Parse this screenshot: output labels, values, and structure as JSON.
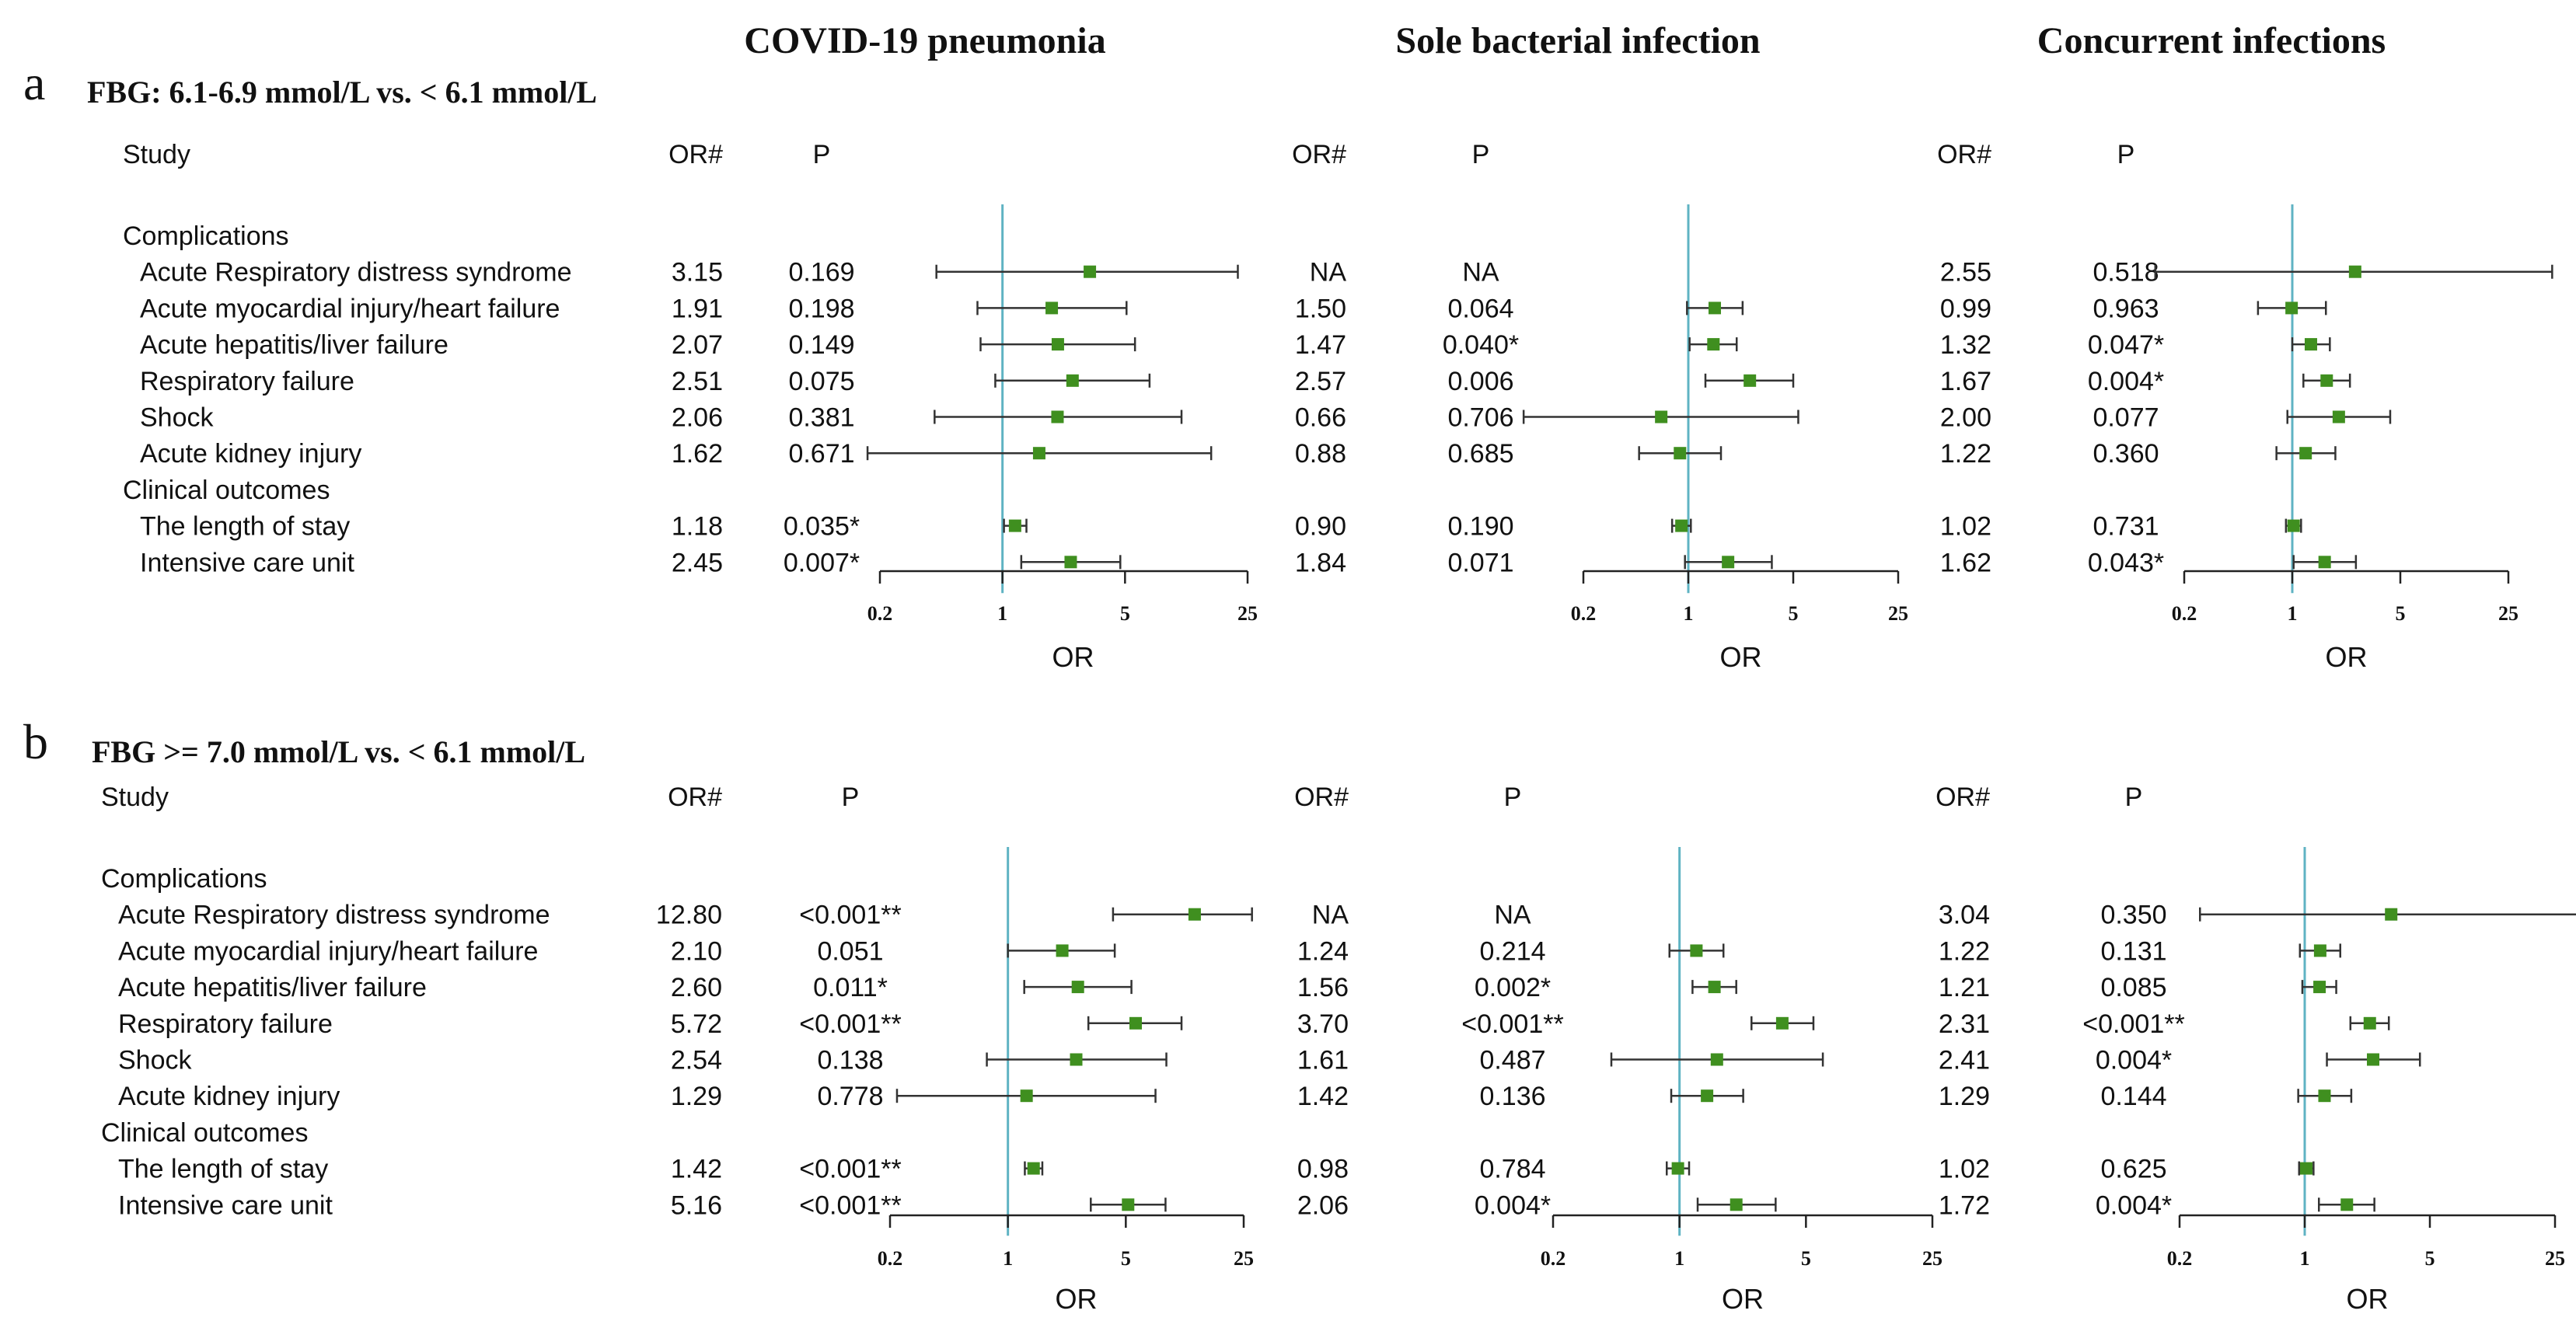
{
  "columns": [
    "COVID-19 pneumonia",
    "Sole bacterial infection",
    "Concurrent infections"
  ],
  "header": {
    "study": "Study",
    "or": "OR#",
    "p": "P"
  },
  "axis": {
    "label": "OR",
    "ticks": [
      "0.2",
      "1",
      "5",
      "25"
    ],
    "tick_values": [
      0.2,
      1,
      5,
      25
    ],
    "range": [
      0.2,
      25
    ],
    "scale": "log"
  },
  "colors": {
    "point": "#3f8f1f",
    "reference_line": "#5fb3c3",
    "text": "#111111",
    "ci_line": "#333333"
  },
  "chart_data": [
    {
      "type": "forest",
      "panel": "a",
      "title": "FBG: 6.1-6.9 mmol/L vs. < 6.1 mmol/L",
      "xlabel": "OR",
      "xlim": [
        0.2,
        25
      ],
      "rows": [
        {
          "kind": "section",
          "label": "Complications"
        },
        {
          "kind": "item",
          "label": "Acute Respiratory distress syndrome",
          "cells": [
            {
              "or": "3.15",
              "p": "0.169",
              "est": 3.15,
              "lo": 0.42,
              "hi": 22.0
            },
            {
              "or": "NA",
              "p": "NA",
              "est": null,
              "lo": null,
              "hi": null
            },
            {
              "or": "2.55",
              "p": "0.518",
              "est": 2.55,
              "lo": 0.13,
              "hi": 48.0
            }
          ]
        },
        {
          "kind": "item",
          "label": "Acute myocardial injury/heart failure",
          "cells": [
            {
              "or": "1.91",
              "p": "0.198",
              "est": 1.91,
              "lo": 0.72,
              "hi": 5.1
            },
            {
              "or": "1.50",
              "p": "0.064",
              "est": 1.5,
              "lo": 0.98,
              "hi": 2.3
            },
            {
              "or": "0.99",
              "p": "0.963",
              "est": 0.99,
              "lo": 0.6,
              "hi": 1.65
            }
          ]
        },
        {
          "kind": "item",
          "label": "Acute hepatitis/liver failure",
          "cells": [
            {
              "or": "2.07",
              "p": "0.149",
              "est": 2.07,
              "lo": 0.75,
              "hi": 5.7
            },
            {
              "or": "1.47",
              "p": "0.040*",
              "est": 1.47,
              "lo": 1.02,
              "hi": 2.1
            },
            {
              "or": "1.32",
              "p": "0.047*",
              "est": 1.32,
              "lo": 1.0,
              "hi": 1.75
            }
          ]
        },
        {
          "kind": "item",
          "label": "Respiratory failure",
          "cells": [
            {
              "or": "2.51",
              "p": "0.075",
              "est": 2.51,
              "lo": 0.91,
              "hi": 6.9
            },
            {
              "or": "2.57",
              "p": "0.006",
              "est": 2.57,
              "lo": 1.3,
              "hi": 5.0
            },
            {
              "or": "1.67",
              "p": "0.004*",
              "est": 1.67,
              "lo": 1.18,
              "hi": 2.36
            }
          ]
        },
        {
          "kind": "item",
          "label": "Shock",
          "cells": [
            {
              "or": "2.06",
              "p": "0.381",
              "est": 2.06,
              "lo": 0.41,
              "hi": 10.5
            },
            {
              "or": "0.66",
              "p": "0.706",
              "est": 0.66,
              "lo": 0.08,
              "hi": 5.4
            },
            {
              "or": "2.00",
              "p": "0.077",
              "est": 2.0,
              "lo": 0.93,
              "hi": 4.3
            }
          ]
        },
        {
          "kind": "item",
          "label": "Acute kidney injury",
          "cells": [
            {
              "or": "1.62",
              "p": "0.671",
              "est": 1.62,
              "lo": 0.17,
              "hi": 15.5
            },
            {
              "or": "0.88",
              "p": "0.685",
              "est": 0.88,
              "lo": 0.47,
              "hi": 1.65
            },
            {
              "or": "1.22",
              "p": "0.360",
              "est": 1.22,
              "lo": 0.79,
              "hi": 1.9
            }
          ]
        },
        {
          "kind": "section",
          "label": "Clinical outcomes"
        },
        {
          "kind": "item",
          "label": "The length of stay",
          "cells": [
            {
              "or": "1.18",
              "p": "0.035*",
              "est": 1.18,
              "lo": 1.02,
              "hi": 1.37
            },
            {
              "or": "0.90",
              "p": "0.190",
              "est": 0.9,
              "lo": 0.78,
              "hi": 1.04
            },
            {
              "or": "1.02",
              "p": "0.731",
              "est": 1.02,
              "lo": 0.91,
              "hi": 1.14
            }
          ]
        },
        {
          "kind": "item",
          "label": "Intensive care unit",
          "cells": [
            {
              "or": "2.45",
              "p": "0.007*",
              "est": 2.45,
              "lo": 1.28,
              "hi": 4.7
            },
            {
              "or": "1.84",
              "p": "0.071",
              "est": 1.84,
              "lo": 0.95,
              "hi": 3.6
            },
            {
              "or": "1.62",
              "p": "0.043*",
              "est": 1.62,
              "lo": 1.02,
              "hi": 2.58
            }
          ]
        }
      ]
    },
    {
      "type": "forest",
      "panel": "b",
      "title": "FBG >= 7.0 mmol/L vs. < 6.1 mmol/L",
      "xlabel": "OR",
      "xlim": [
        0.2,
        25
      ],
      "rows": [
        {
          "kind": "section",
          "label": "Complications"
        },
        {
          "kind": "item",
          "label": "Acute Respiratory distress syndrome",
          "cells": [
            {
              "or": "12.80",
              "p": "<0.001**",
              "est": 12.8,
              "lo": 4.2,
              "hi": 28.0
            },
            {
              "or": "NA",
              "p": "NA",
              "est": null,
              "lo": null,
              "hi": null
            },
            {
              "or": "3.04",
              "p": "0.350",
              "est": 3.04,
              "lo": 0.26,
              "hi": 34.0
            }
          ]
        },
        {
          "kind": "item",
          "label": "Acute myocardial injury/heart failure",
          "cells": [
            {
              "or": "2.10",
              "p": "0.051",
              "est": 2.1,
              "lo": 1.0,
              "hi": 4.3
            },
            {
              "or": "1.24",
              "p": "0.214",
              "est": 1.24,
              "lo": 0.88,
              "hi": 1.75
            },
            {
              "or": "1.22",
              "p": "0.131",
              "est": 1.22,
              "lo": 0.94,
              "hi": 1.58
            }
          ]
        },
        {
          "kind": "item",
          "label": "Acute hepatitis/liver failure",
          "cells": [
            {
              "or": "2.60",
              "p": "0.011*",
              "est": 2.6,
              "lo": 1.25,
              "hi": 5.4
            },
            {
              "or": "1.56",
              "p": "0.002*",
              "est": 1.56,
              "lo": 1.18,
              "hi": 2.06
            },
            {
              "or": "1.21",
              "p": "0.085",
              "est": 1.21,
              "lo": 0.97,
              "hi": 1.5
            }
          ]
        },
        {
          "kind": "item",
          "label": "Respiratory failure",
          "cells": [
            {
              "or": "5.72",
              "p": "<0.001**",
              "est": 5.72,
              "lo": 3.0,
              "hi": 10.7
            },
            {
              "or": "3.70",
              "p": "<0.001**",
              "est": 3.7,
              "lo": 2.5,
              "hi": 5.5
            },
            {
              "or": "2.31",
              "p": "<0.001**",
              "est": 2.31,
              "lo": 1.8,
              "hi": 2.95
            }
          ]
        },
        {
          "kind": "item",
          "label": "Shock",
          "cells": [
            {
              "or": "2.54",
              "p": "0.138",
              "est": 2.54,
              "lo": 0.75,
              "hi": 8.7
            },
            {
              "or": "1.61",
              "p": "0.487",
              "est": 1.61,
              "lo": 0.42,
              "hi": 6.2
            },
            {
              "or": "2.41",
              "p": "0.004*",
              "est": 2.41,
              "lo": 1.33,
              "hi": 4.4
            }
          ]
        },
        {
          "kind": "item",
          "label": "Acute kidney injury",
          "cells": [
            {
              "or": "1.29",
              "p": "0.778",
              "est": 1.29,
              "lo": 0.22,
              "hi": 7.5
            },
            {
              "or": "1.42",
              "p": "0.136",
              "est": 1.42,
              "lo": 0.9,
              "hi": 2.25
            },
            {
              "or": "1.29",
              "p": "0.144",
              "est": 1.29,
              "lo": 0.92,
              "hi": 1.82
            }
          ]
        },
        {
          "kind": "section",
          "label": "Clinical outcomes"
        },
        {
          "kind": "item",
          "label": "The length of stay",
          "cells": [
            {
              "or": "1.42",
              "p": "<0.001**",
              "est": 1.42,
              "lo": 1.26,
              "hi": 1.6
            },
            {
              "or": "0.98",
              "p": "0.784",
              "est": 0.98,
              "lo": 0.85,
              "hi": 1.13
            },
            {
              "or": "1.02",
              "p": "0.625",
              "est": 1.02,
              "lo": 0.93,
              "hi": 1.12
            }
          ]
        },
        {
          "kind": "item",
          "label": "Intensive care unit",
          "cells": [
            {
              "or": "5.16",
              "p": "<0.001**",
              "est": 5.16,
              "lo": 3.1,
              "hi": 8.6
            },
            {
              "or": "2.06",
              "p": "0.004*",
              "est": 2.06,
              "lo": 1.26,
              "hi": 3.4
            },
            {
              "or": "1.72",
              "p": "0.004*",
              "est": 1.72,
              "lo": 1.2,
              "hi": 2.45
            }
          ]
        }
      ]
    }
  ]
}
